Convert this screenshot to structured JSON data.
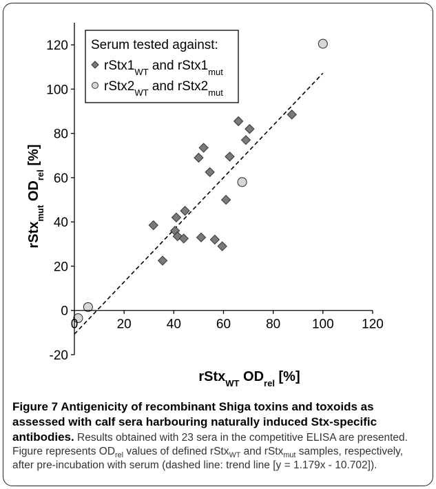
{
  "chart_data": {
    "type": "scatter",
    "title": "",
    "xlabel": {
      "main": "rStx",
      "sub1": "WT",
      "mid": " OD",
      "sub2": "rel",
      "tail": " [%]"
    },
    "ylabel": {
      "main": "rStx",
      "sub1": "mut",
      "mid": " OD",
      "sub2": "rel",
      "tail": " [%]"
    },
    "xlim": [
      0,
      120
    ],
    "ylim": [
      -20,
      130
    ],
    "xticks": [
      "0",
      "20",
      "40",
      "60",
      "80",
      "100",
      "120"
    ],
    "yticks": [
      "-20",
      "0",
      "20",
      "40",
      "60",
      "80",
      "100",
      "120"
    ],
    "xtick_values": [
      0,
      20,
      40,
      60,
      80,
      100,
      120
    ],
    "ytick_values": [
      -20,
      0,
      20,
      40,
      60,
      80,
      100,
      120
    ],
    "grid": false,
    "legend": {
      "position": "top-left",
      "title": "Serum tested against:",
      "entries": [
        {
          "main": "rStx1",
          "sub1": "WT",
          "mid": " and rStx1",
          "sub2": "mut"
        },
        {
          "main": "rStx2",
          "sub1": "WT",
          "mid": " and rStx2",
          "sub2": "mut"
        }
      ]
    },
    "series": [
      {
        "marker": "diamond",
        "color": "#7a7a7a",
        "points": [
          [
            31.8,
            38.5
          ],
          [
            35.5,
            22.5
          ],
          [
            40.5,
            36.0
          ],
          [
            41.0,
            42.0
          ],
          [
            41.5,
            33.5
          ],
          [
            44.0,
            32.5
          ],
          [
            44.5,
            45.0
          ],
          [
            50.0,
            69.0
          ],
          [
            51.0,
            33.0
          ],
          [
            52.0,
            73.5
          ],
          [
            54.5,
            62.5
          ],
          [
            56.5,
            32.0
          ],
          [
            59.5,
            29.0
          ],
          [
            61.0,
            50.0
          ],
          [
            62.5,
            69.5
          ],
          [
            66.0,
            85.5
          ],
          [
            69.0,
            77.0
          ],
          [
            70.5,
            82.0
          ],
          [
            87.5,
            88.5
          ]
        ]
      },
      {
        "marker": "circle",
        "color": "#d7d7d7",
        "points": [
          [
            1.5,
            -3.5
          ],
          [
            5.5,
            1.5
          ],
          [
            67.5,
            58.0
          ],
          [
            100.0,
            120.5
          ]
        ]
      }
    ],
    "trendline": {
      "slope": 1.179,
      "intercept": -10.702,
      "x_range": [
        0,
        100
      ],
      "style": "dashed"
    }
  },
  "caption": {
    "title": "Figure 7 Antigenicity of recombinant Shiga toxins and toxoids as assessed with calf sera harbouring naturally induced Stx-specific antibodies.",
    "t1": " Results obtained with 23 sera in the competitive ELISA are presented. Figure represents OD",
    "s1": "rel",
    "t2": " values of defined rStx",
    "s2": "WT",
    "t3": " and rStx",
    "s3": "mut",
    "t4": " samples, respectively, after pre-incubation with serum (dashed line: trend line [y = 1.179x - 10.702])."
  }
}
